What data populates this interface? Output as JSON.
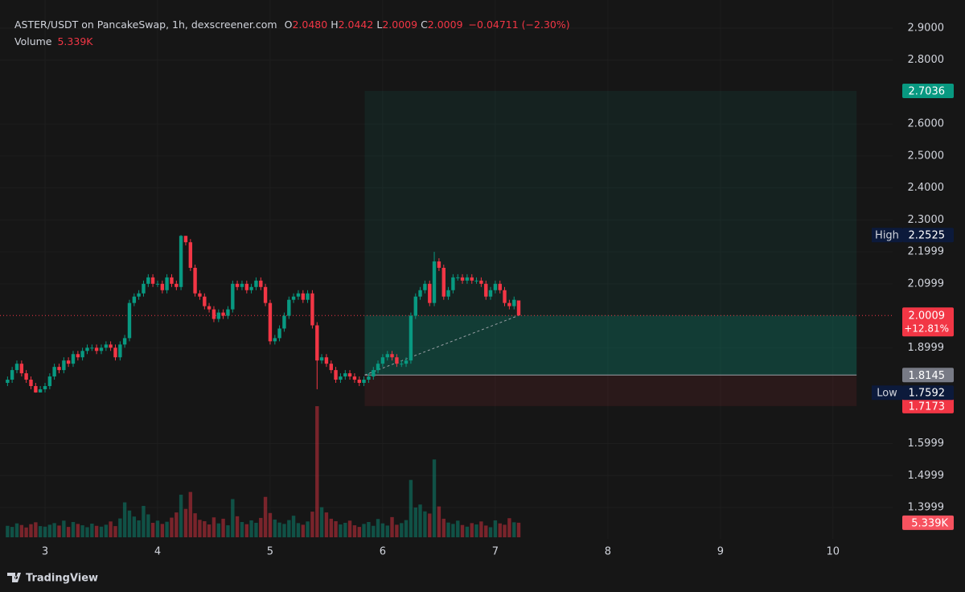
{
  "chart_data": {
    "type": "candlestick",
    "title": "ASTER/USDT on PancakeSwap, 1h, dexscreener.com",
    "legend_values": [
      {
        "label": "O",
        "value": "2.0480"
      },
      {
        "label": "H",
        "value": "2.0442"
      },
      {
        "label": "L",
        "value": "2.0009"
      },
      {
        "label": "C",
        "value": "2.0009"
      }
    ],
    "change": "−0.04711 (−2.30%)",
    "volume_title": "Volume",
    "volume_label": {
      "value": 5339,
      "label": "5.339K"
    },
    "x": [
      2.667,
      2.708,
      2.75,
      2.792,
      2.833,
      2.875,
      2.917,
      2.958,
      3.0,
      3.042,
      3.083,
      3.125,
      3.167,
      3.208,
      3.25,
      3.292,
      3.333,
      3.375,
      3.417,
      3.458,
      3.5,
      3.542,
      3.583,
      3.625,
      3.667,
      3.708,
      3.75,
      3.792,
      3.833,
      3.875,
      3.917,
      3.958,
      4.0,
      4.042,
      4.083,
      4.125,
      4.167,
      4.208,
      4.25,
      4.292,
      4.333,
      4.375,
      4.417,
      4.458,
      4.5,
      4.542,
      4.583,
      4.625,
      4.667,
      4.708,
      4.75,
      4.792,
      4.833,
      4.875,
      4.917,
      4.958,
      5.0,
      5.042,
      5.083,
      5.125,
      5.167,
      5.208,
      5.25,
      5.292,
      5.333,
      5.375,
      5.417,
      5.458,
      5.5,
      5.542,
      5.583,
      5.625,
      5.667,
      5.708,
      5.75,
      5.792,
      5.833,
      5.875,
      5.917,
      5.958,
      6.0,
      6.042,
      6.083,
      6.125,
      6.167,
      6.208,
      6.25,
      6.292,
      6.333,
      6.375,
      6.417,
      6.458,
      6.5,
      6.542,
      6.583,
      6.625,
      6.667,
      6.708,
      6.75,
      6.792,
      6.833,
      6.875,
      6.917,
      6.958,
      7.0,
      7.042,
      7.083,
      7.125,
      7.167,
      7.208
    ],
    "open": [
      1.79,
      1.8,
      1.83,
      1.85,
      1.82,
      1.8,
      1.78,
      1.76,
      1.77,
      1.78,
      1.81,
      1.84,
      1.83,
      1.86,
      1.85,
      1.88,
      1.87,
      1.89,
      1.9,
      1.9,
      1.89,
      1.9,
      1.91,
      1.9,
      1.87,
      1.91,
      1.93,
      2.04,
      2.06,
      2.07,
      2.1,
      2.12,
      2.1,
      2.1,
      2.08,
      2.12,
      2.1,
      2.09,
      2.25,
      2.23,
      2.15,
      2.07,
      2.06,
      2.03,
      2.02,
      1.99,
      2.01,
      2.0,
      2.02,
      2.1,
      2.09,
      2.1,
      2.08,
      2.09,
      2.11,
      2.09,
      2.04,
      1.92,
      1.93,
      1.96,
      2.0,
      2.05,
      2.06,
      2.07,
      2.05,
      2.07,
      1.97,
      1.86,
      1.87,
      1.85,
      1.83,
      1.8,
      1.81,
      1.82,
      1.81,
      1.8,
      1.79,
      1.8,
      1.81,
      1.83,
      1.85,
      1.87,
      1.88,
      1.87,
      1.85,
      1.85,
      1.86,
      2.0,
      2.06,
      2.08,
      2.1,
      2.04,
      2.17,
      2.15,
      2.06,
      2.08,
      2.12,
      2.12,
      2.11,
      2.12,
      2.11,
      2.11,
      2.1,
      2.06,
      2.08,
      2.1,
      2.08,
      2.04,
      2.03,
      2.048
    ],
    "high": [
      1.81,
      1.84,
      1.86,
      1.86,
      1.83,
      1.81,
      1.79,
      1.78,
      1.79,
      1.82,
      1.85,
      1.85,
      1.87,
      1.87,
      1.89,
      1.89,
      1.9,
      1.91,
      1.91,
      1.91,
      1.91,
      1.92,
      1.92,
      1.91,
      1.92,
      1.94,
      2.05,
      2.07,
      2.08,
      2.11,
      2.13,
      2.13,
      2.11,
      2.11,
      2.13,
      2.13,
      2.11,
      2.2525,
      2.25,
      2.24,
      2.16,
      2.08,
      2.07,
      2.04,
      2.03,
      2.02,
      2.02,
      2.03,
      2.11,
      2.11,
      2.11,
      2.11,
      2.1,
      2.12,
      2.12,
      2.1,
      2.05,
      1.94,
      1.97,
      2.01,
      2.06,
      2.07,
      2.08,
      2.08,
      2.08,
      2.08,
      1.98,
      1.88,
      1.88,
      1.86,
      1.84,
      1.82,
      1.83,
      1.83,
      1.82,
      1.81,
      1.81,
      1.82,
      1.84,
      1.86,
      1.88,
      1.89,
      1.89,
      1.88,
      1.86,
      1.87,
      2.01,
      2.07,
      2.09,
      2.11,
      2.11,
      2.2,
      2.18,
      2.16,
      2.09,
      2.13,
      2.13,
      2.13,
      2.13,
      2.13,
      2.12,
      2.12,
      2.11,
      2.09,
      2.11,
      2.11,
      2.09,
      2.05,
      2.06,
      2.0442
    ],
    "low": [
      1.78,
      1.79,
      1.82,
      1.81,
      1.79,
      1.77,
      1.7592,
      1.76,
      1.76,
      1.77,
      1.8,
      1.82,
      1.82,
      1.84,
      1.84,
      1.86,
      1.86,
      1.88,
      1.89,
      1.88,
      1.88,
      1.89,
      1.89,
      1.86,
      1.86,
      1.9,
      1.92,
      2.03,
      2.05,
      2.06,
      2.09,
      2.09,
      2.09,
      2.07,
      2.07,
      2.09,
      2.08,
      2.08,
      2.22,
      2.14,
      2.06,
      2.05,
      2.02,
      2.01,
      1.98,
      1.98,
      1.99,
      1.99,
      2.01,
      2.08,
      2.08,
      2.07,
      2.07,
      2.08,
      2.08,
      2.03,
      1.91,
      1.91,
      1.92,
      1.95,
      1.99,
      2.04,
      2.05,
      2.04,
      2.04,
      1.96,
      1.77,
      1.85,
      1.84,
      1.82,
      1.79,
      1.79,
      1.8,
      1.8,
      1.79,
      1.78,
      1.78,
      1.79,
      1.8,
      1.82,
      1.84,
      1.86,
      1.86,
      1.84,
      1.84,
      1.84,
      1.85,
      1.99,
      2.05,
      2.07,
      2.03,
      2.03,
      2.14,
      2.05,
      2.05,
      2.07,
      2.11,
      2.1,
      2.1,
      2.1,
      2.1,
      2.09,
      2.05,
      2.05,
      2.07,
      2.07,
      2.03,
      2.02,
      2.02,
      2.0009
    ],
    "close": [
      1.8,
      1.83,
      1.85,
      1.82,
      1.8,
      1.78,
      1.76,
      1.77,
      1.78,
      1.81,
      1.84,
      1.83,
      1.86,
      1.85,
      1.88,
      1.87,
      1.89,
      1.9,
      1.9,
      1.89,
      1.9,
      1.91,
      1.9,
      1.87,
      1.91,
      1.93,
      2.04,
      2.06,
      2.07,
      2.1,
      2.12,
      2.1,
      2.1,
      2.08,
      2.12,
      2.1,
      2.09,
      2.25,
      2.23,
      2.15,
      2.07,
      2.06,
      2.03,
      2.02,
      1.99,
      2.01,
      2.0,
      2.02,
      2.1,
      2.09,
      2.1,
      2.08,
      2.09,
      2.11,
      2.09,
      2.04,
      1.92,
      1.93,
      1.96,
      2.0,
      2.05,
      2.06,
      2.07,
      2.05,
      2.07,
      1.97,
      1.86,
      1.87,
      1.85,
      1.83,
      1.8,
      1.81,
      1.82,
      1.81,
      1.8,
      1.79,
      1.8,
      1.81,
      1.83,
      1.85,
      1.87,
      1.88,
      1.87,
      1.85,
      1.85,
      1.86,
      2.0,
      2.06,
      2.08,
      2.1,
      2.04,
      2.17,
      2.15,
      2.06,
      2.08,
      2.12,
      2.12,
      2.11,
      2.12,
      2.11,
      2.11,
      2.1,
      2.06,
      2.08,
      2.1,
      2.08,
      2.04,
      2.03,
      2.05,
      2.0009
    ],
    "volume": [
      4200,
      3800,
      5100,
      4500,
      3600,
      4800,
      5500,
      4100,
      3900,
      4600,
      5200,
      4300,
      6100,
      3800,
      5600,
      4900,
      4400,
      3700,
      5000,
      4200,
      3900,
      4600,
      5800,
      4100,
      6900,
      12800,
      9800,
      7600,
      6200,
      11500,
      8400,
      5300,
      6100,
      4900,
      5700,
      7200,
      9100,
      15600,
      10400,
      16600,
      8800,
      6400,
      5900,
      4700,
      7300,
      5100,
      6800,
      4400,
      14000,
      7700,
      5600,
      4800,
      6200,
      5300,
      7100,
      14800,
      8900,
      6500,
      5400,
      4900,
      6300,
      7900,
      5200,
      4600,
      5800,
      9400,
      48000,
      11000,
      9100,
      6800,
      5900,
      4700,
      5300,
      6100,
      4400,
      3800,
      4900,
      5600,
      4200,
      6700,
      5100,
      4300,
      7400,
      4600,
      5200,
      6300,
      21000,
      10900,
      12000,
      9500,
      8700,
      28500,
      11300,
      6800,
      5400,
      4900,
      6100,
      4500,
      3900,
      5200,
      4700,
      5800,
      4300,
      3700,
      6200,
      5100,
      4600,
      7000,
      5500,
      5339
    ],
    "up_color": "#089981",
    "down_color": "#f23645",
    "xlim": [
      2.6,
      10.53
    ],
    "xticks": [
      3,
      4,
      5,
      6,
      7,
      8,
      9,
      10
    ],
    "ylim": [
      1.264,
      2.988
    ],
    "yticks": [
      {
        "value": 2.9,
        "label": "2.9000"
      },
      {
        "value": 2.8,
        "label": "2.8000"
      },
      {
        "value": 2.6,
        "label": "2.6000"
      },
      {
        "value": 2.5,
        "label": "2.5000"
      },
      {
        "value": 2.4,
        "label": "2.4000"
      },
      {
        "value": 2.3,
        "label": "2.3000"
      },
      2.1999,
      2.0999,
      1.8999,
      1.5999,
      1.4999,
      1.3999
    ],
    "grid": true,
    "last_price": {
      "value": 2.0009,
      "label": "2.0009",
      "change": "+12.81%"
    },
    "high_marker": {
      "name": "High",
      "value": 2.2525,
      "label": "2.2525"
    },
    "low_marker": {
      "name": "Low",
      "value": 1.7592,
      "label": "1.7592"
    },
    "position": {
      "start": 5.84,
      "end": 10.21,
      "target": {
        "value": 2.7036,
        "label": "2.7036"
      },
      "entry": {
        "value": 1.8145,
        "label": "1.8145"
      },
      "stop": {
        "value": 1.7173,
        "label": "1.7173"
      }
    },
    "brand": "TradingView"
  }
}
